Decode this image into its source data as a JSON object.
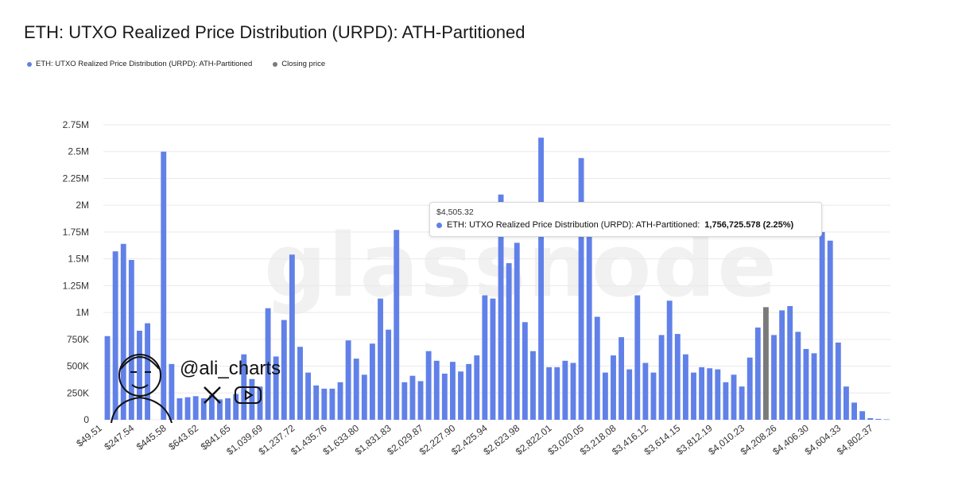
{
  "title": "ETH: UTXO Realized Price Distribution (URPD): ATH-Partitioned",
  "legend": [
    {
      "label": "ETH: UTXO Realized Price Distribution (URPD): ATH-Partitioned",
      "color": "#6181e8"
    },
    {
      "label": "Closing price",
      "color": "#7a7a7a"
    }
  ],
  "watermark": "glassnode",
  "overlay": {
    "handle": "@ali_charts",
    "icons": [
      "avatar-icon",
      "x-logo-icon",
      "youtube-icon"
    ]
  },
  "tooltip": {
    "x": "$4,505.32",
    "series": "ETH: UTXO Realized Price Distribution (URPD): ATH-Partitioned",
    "value": "1,756,725.578 (2.25%)"
  },
  "chart_data": {
    "type": "bar",
    "colors": {
      "bar": "#6181e8",
      "closing": "#7a7a7a",
      "grid": "#e9e9e9"
    },
    "ylim": [
      0,
      2750000
    ],
    "yticks": [
      0,
      250000,
      500000,
      750000,
      1000000,
      1250000,
      1500000,
      1750000,
      2000000,
      2250000,
      2500000,
      2750000
    ],
    "ytick_labels": [
      "0",
      "250K",
      "500K",
      "750K",
      "1M",
      "1.25M",
      "1.5M",
      "1.75M",
      "2M",
      "2.25M",
      "2.5M",
      "2.75M"
    ],
    "xtick_labels": [
      "$49.51",
      "$247.54",
      "$445.58",
      "$643.62",
      "$841.65",
      "$1,039.69",
      "$1,237.72",
      "$1,435.76",
      "$1,633.80",
      "$1,831.83",
      "$2,029.87",
      "$2,227.90",
      "$2,425.94",
      "$2,623.98",
      "$2,822.01",
      "$3,020.05",
      "$3,218.08",
      "$3,416.12",
      "$3,614.15",
      "$3,812.19",
      "$4,010.23",
      "$4,208.26",
      "$4,406.30",
      "$4,604.33",
      "$4,802.37"
    ],
    "closing_index": 82,
    "values": [
      780000,
      1570000,
      1640000,
      1490000,
      830000,
      900000,
      0,
      2500000,
      520000,
      200000,
      210000,
      220000,
      200000,
      230000,
      190000,
      200000,
      240000,
      610000,
      380000,
      310000,
      1040000,
      590000,
      930000,
      1540000,
      680000,
      440000,
      320000,
      290000,
      290000,
      350000,
      740000,
      570000,
      420000,
      710000,
      1130000,
      840000,
      1770000,
      350000,
      410000,
      360000,
      640000,
      550000,
      430000,
      540000,
      450000,
      520000,
      600000,
      1160000,
      1130000,
      2100000,
      1460000,
      1650000,
      910000,
      640000,
      2630000,
      490000,
      490000,
      550000,
      530000,
      2440000,
      1760000,
      960000,
      440000,
      600000,
      770000,
      470000,
      1160000,
      530000,
      440000,
      790000,
      1110000,
      800000,
      610000,
      440000,
      490000,
      480000,
      470000,
      350000,
      420000,
      310000,
      580000,
      860000,
      1050000,
      790000,
      1020000,
      1060000,
      820000,
      660000,
      620000,
      1750000,
      1670000,
      720000,
      310000,
      160000,
      80000,
      15000,
      8000,
      4000
    ]
  }
}
